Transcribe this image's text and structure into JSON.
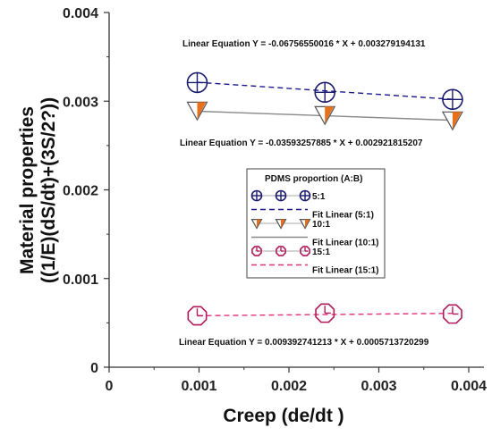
{
  "chart_data": {
    "type": "scatter",
    "xlabel": "Creep (de/dt )",
    "ylabel_line1": "Material properties",
    "ylabel_line2": "((1/E)(dS/dt)+(3S/2?))",
    "xlim": [
      0,
      0.004
    ],
    "ylim": [
      0,
      0.004
    ],
    "x_ticks": [
      "0",
      "0.001",
      "0.002",
      "0.003",
      "0.004"
    ],
    "y_ticks": [
      "0",
      "0.001",
      "0.002",
      "0.003",
      "0.004"
    ],
    "series": [
      {
        "name": "5:1",
        "marker": "circle-plus",
        "color": "#1a1a6e",
        "points": [
          [
            0.00098,
            0.00321
          ],
          [
            0.0024,
            0.0031
          ],
          [
            0.00382,
            0.00302
          ]
        ]
      },
      {
        "name": "10:1",
        "marker": "triangle-down",
        "color": "#e8701a",
        "points": [
          [
            0.00098,
            0.0029
          ],
          [
            0.0024,
            0.00285
          ],
          [
            0.00382,
            0.00279
          ]
        ]
      },
      {
        "name": "15:1",
        "marker": "octagon-clock",
        "color": "#b0195a",
        "points": [
          [
            0.00098,
            0.00058
          ],
          [
            0.0024,
            0.00061
          ],
          [
            0.00382,
            0.0006
          ]
        ]
      }
    ],
    "fits": [
      {
        "name": "Fit Linear (5:1)",
        "slope": -0.06756550016,
        "intercept": 0.003279194131,
        "color": "#1a1a8e",
        "dash": "6,4"
      },
      {
        "name": "Fit Linear (10:1)",
        "slope": -0.03593257885,
        "intercept": 0.002921815207,
        "color": "#888888",
        "dash": ""
      },
      {
        "name": "Fit Linear (15:1)",
        "slope": 0.009392741213,
        "intercept": 0.0005713720299,
        "color": "#e0317a",
        "dash": "6,4"
      }
    ],
    "annotations": [
      "Linear Equation Y = -0.06756550016 * X + 0.003279194131",
      "Linear Equation Y = -0.03593257885 * X + 0.002921815207",
      "Linear Equation Y = 0.009392741213 * X + 0.0005713720299"
    ],
    "legend": {
      "title": "PDMS proportion (A:B)",
      "entries": [
        "5:1",
        "Fit Linear (5:1)",
        "10:1",
        "Fit Linear (10:1)",
        "15:1",
        "Fit Linear (15:1)"
      ]
    },
    "grid": false,
    "legend_placement": "center-right"
  }
}
